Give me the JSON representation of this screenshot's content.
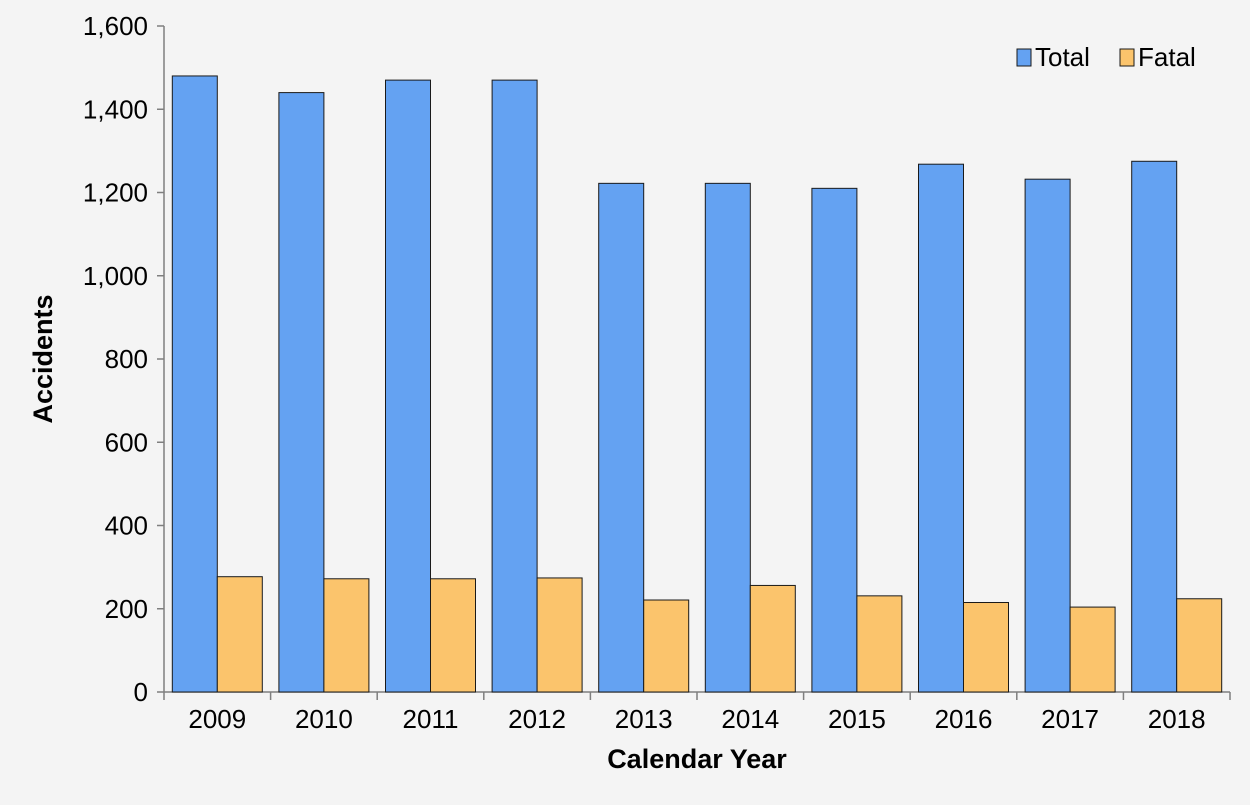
{
  "chart_data": {
    "type": "bar",
    "title": "",
    "xlabel": "Calendar Year",
    "ylabel": "Accidents",
    "ylim": [
      0,
      1600
    ],
    "yticks": [
      0,
      200,
      400,
      600,
      800,
      1000,
      1200,
      1400,
      1600
    ],
    "ytick_labels": [
      "0",
      "200",
      "400",
      "600",
      "800",
      "1,000",
      "1,200",
      "1,400",
      "1,600"
    ],
    "categories": [
      "2009",
      "2010",
      "2011",
      "2012",
      "2013",
      "2014",
      "2015",
      "2016",
      "2017",
      "2018"
    ],
    "series": [
      {
        "name": "Total",
        "color": "#64a2f2",
        "values": [
          1480,
          1440,
          1470,
          1470,
          1222,
          1222,
          1210,
          1268,
          1232,
          1275
        ]
      },
      {
        "name": "Fatal",
        "color": "#fbc46c",
        "values": [
          277,
          272,
          272,
          274,
          221,
          256,
          231,
          215,
          204,
          224
        ]
      }
    ],
    "grid": false,
    "legend_position": "top-right"
  }
}
